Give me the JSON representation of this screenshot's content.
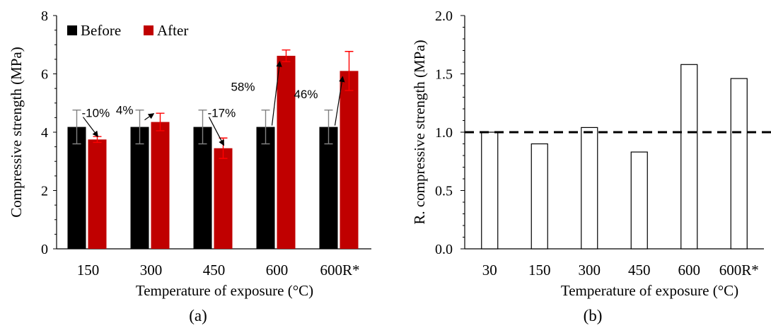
{
  "chart_data": [
    {
      "panel_label": "(a)",
      "type": "bar",
      "categories": [
        "150",
        "300",
        "450",
        "600",
        "600R*"
      ],
      "series": [
        {
          "name": "Before",
          "color": "#000000",
          "values": [
            4.18,
            4.18,
            4.18,
            4.18,
            4.18
          ],
          "error": [
            0.58,
            0.58,
            0.58,
            0.58,
            0.58
          ],
          "error_color": "#808080"
        },
        {
          "name": "After",
          "color": "#c00000",
          "values": [
            3.75,
            4.35,
            3.45,
            6.62,
            6.1
          ],
          "error": [
            0.1,
            0.3,
            0.35,
            0.2,
            0.67
          ],
          "error_color": "#ff0000"
        }
      ],
      "annotations": [
        "-10%",
        "4%",
        "-17%",
        "58%",
        "46%"
      ],
      "xlabel": "Temperature of exposure (°C)",
      "ylabel": "Compressive strength (MPa)",
      "ylim": [
        0,
        8
      ],
      "yticks": [
        "0",
        "2",
        "4",
        "6",
        "8"
      ],
      "legend_placement": "top-left",
      "grid": false
    },
    {
      "panel_label": "(b)",
      "type": "bar",
      "categories": [
        "30",
        "150",
        "300",
        "450",
        "600",
        "600R*"
      ],
      "values": [
        1.0,
        0.9,
        1.04,
        0.83,
        1.58,
        1.46
      ],
      "bar_fill": "#ffffff",
      "bar_stroke": "#000000",
      "reference_line": 1.0,
      "xlabel": "Temperature of exposure (°C)",
      "ylabel": "R. compressive strength (MPa)",
      "ylim": [
        0,
        2.0
      ],
      "yticks": [
        "0.0",
        "0.5",
        "1.0",
        "1.5",
        "2.0"
      ],
      "grid": false
    }
  ]
}
